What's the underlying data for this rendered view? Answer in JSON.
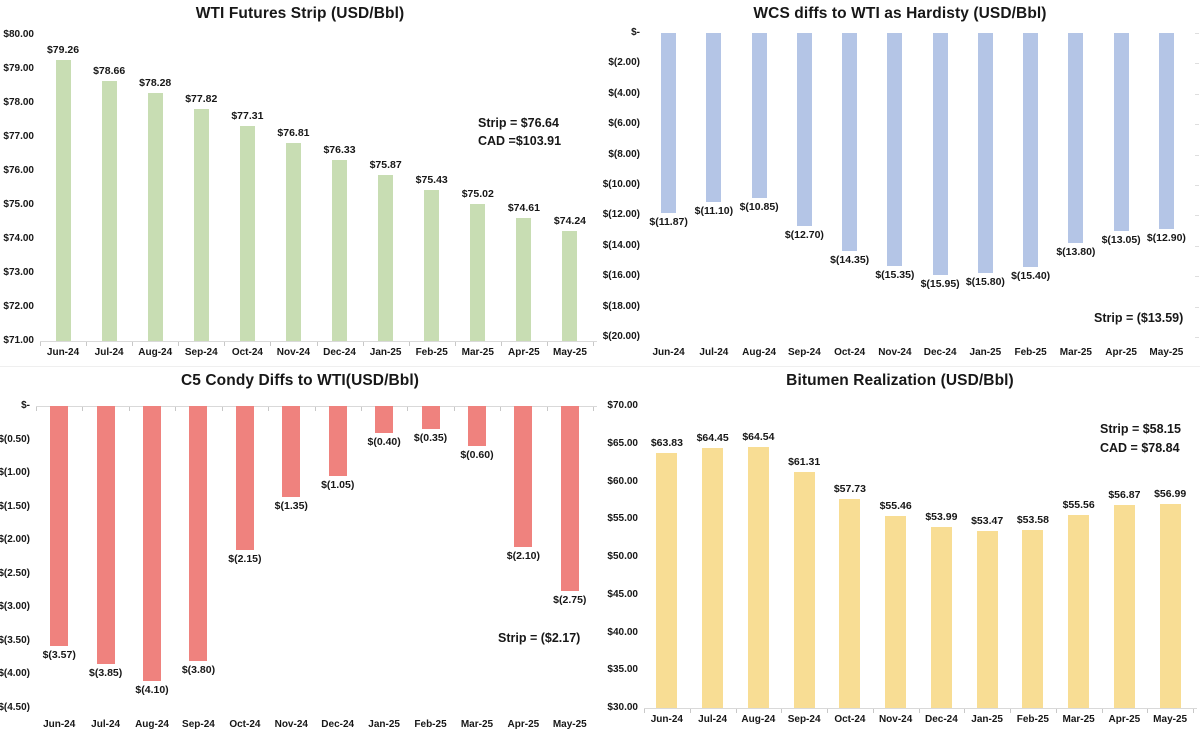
{
  "page": {
    "background": "#ffffff"
  },
  "chart_data": [
    {
      "type": "bar",
      "title": "WTI Futures Strip (USD/Bbl)",
      "categories": [
        "Jun-24",
        "Jul-24",
        "Aug-24",
        "Sep-24",
        "Oct-24",
        "Nov-24",
        "Dec-24",
        "Jan-25",
        "Feb-25",
        "Mar-25",
        "Apr-25",
        "May-25"
      ],
      "values": [
        79.26,
        78.66,
        78.28,
        77.82,
        77.31,
        76.81,
        76.33,
        75.87,
        75.43,
        75.02,
        74.61,
        74.24
      ],
      "bar_labels": [
        "$79.26",
        "$78.66",
        "$78.28",
        "$77.82",
        "$77.31",
        "$76.81",
        "$76.33",
        "$75.87",
        "$75.43",
        "$75.02",
        "$74.61",
        "$74.24"
      ],
      "ytick_labels": [
        "$80.00",
        "$79.00",
        "$78.00",
        "$77.00",
        "$76.00",
        "$75.00",
        "$74.00",
        "$73.00",
        "$72.00",
        "$71.00"
      ],
      "ytick_values": [
        80,
        79,
        78,
        77,
        76,
        75,
        74,
        73,
        72,
        71
      ],
      "yrange": [
        71,
        80
      ],
      "baseline": 71,
      "bar_color": "#c8ddb3",
      "label_position": "above",
      "grid": false,
      "annotation": [
        "Strip = $76.64",
        "CAD =$103.91"
      ],
      "annotation_position": "right-middle"
    },
    {
      "type": "bar",
      "title": "WCS diffs to WTI as Hardisty (USD/Bbl)",
      "categories": [
        "Jun-24",
        "Jul-24",
        "Aug-24",
        "Sep-24",
        "Oct-24",
        "Nov-24",
        "Dec-24",
        "Jan-25",
        "Feb-25",
        "Mar-25",
        "Apr-25",
        "May-25"
      ],
      "values": [
        -11.87,
        -11.1,
        -10.85,
        -12.7,
        -14.35,
        -15.35,
        -15.95,
        -15.8,
        -15.4,
        -13.8,
        -13.05,
        -12.9
      ],
      "bar_labels": [
        "$(11.87)",
        "$(11.10)",
        "$(10.85)",
        "$(12.70)",
        "$(14.35)",
        "$(15.35)",
        "$(15.95)",
        "$(15.80)",
        "$(15.40)",
        "$(13.80)",
        "$(13.05)",
        "$(12.90)"
      ],
      "ytick_labels": [
        "$-",
        "$(2.00)",
        "$(4.00)",
        "$(6.00)",
        "$(8.00)",
        "$(10.00)",
        "$(12.00)",
        "$(14.00)",
        "$(16.00)",
        "$(18.00)",
        "$(20.00)"
      ],
      "ytick_values": [
        0,
        -2,
        -4,
        -6,
        -8,
        -10,
        -12,
        -14,
        -16,
        -18,
        -20
      ],
      "yrange": [
        -20,
        0
      ],
      "baseline": 0,
      "bar_color": "#b4c5e6",
      "label_position": "below",
      "grid": false,
      "annotation": [
        "Strip = ($13.59)"
      ],
      "annotation_position": "right-bottom"
    },
    {
      "type": "bar",
      "title": "C5 Condy Diffs to WTI(USD/Bbl)",
      "categories": [
        "Jun-24",
        "Jul-24",
        "Aug-24",
        "Sep-24",
        "Oct-24",
        "Nov-24",
        "Dec-24",
        "Jan-25",
        "Feb-25",
        "Mar-25",
        "Apr-25",
        "May-25"
      ],
      "values": [
        -3.57,
        -3.85,
        -4.1,
        -3.8,
        -2.15,
        -1.35,
        -1.05,
        -0.4,
        -0.35,
        -0.6,
        -2.1,
        -2.75
      ],
      "bar_labels": [
        "$(3.57)",
        "$(3.85)",
        "$(4.10)",
        "$(3.80)",
        "$(2.15)",
        "$(1.35)",
        "$(1.05)",
        "$(0.40)",
        "$(0.35)",
        "$(0.60)",
        "$(2.10)",
        "$(2.75)"
      ],
      "ytick_labels": [
        "$-",
        "$(0.50)",
        "$(1.00)",
        "$(1.50)",
        "$(2.00)",
        "$(2.50)",
        "$(3.00)",
        "$(3.50)",
        "$(4.00)",
        "$(4.50)"
      ],
      "ytick_values": [
        0,
        -0.5,
        -1,
        -1.5,
        -2,
        -2.5,
        -3,
        -3.5,
        -4,
        -4.5
      ],
      "yrange": [
        -4.5,
        0
      ],
      "baseline": 0,
      "bar_color": "#ef827e",
      "label_position": "below",
      "grid": false,
      "annotation": [
        "Strip = ($2.17)"
      ],
      "annotation_position": "right-lower"
    },
    {
      "type": "bar",
      "title": "Bitumen Realization (USD/Bbl)",
      "categories": [
        "Jun-24",
        "Jul-24",
        "Aug-24",
        "Sep-24",
        "Oct-24",
        "Nov-24",
        "Dec-24",
        "Jan-25",
        "Feb-25",
        "Mar-25",
        "Apr-25",
        "May-25"
      ],
      "values": [
        63.83,
        64.45,
        64.54,
        61.31,
        57.73,
        55.46,
        53.99,
        53.47,
        53.58,
        55.56,
        56.87,
        56.99
      ],
      "bar_labels": [
        "$63.83",
        "$64.45",
        "$64.54",
        "$61.31",
        "$57.73",
        "$55.46",
        "$53.99",
        "$53.47",
        "$53.58",
        "$55.56",
        "$56.87",
        "$56.99"
      ],
      "ytick_labels": [
        "$70.00",
        "$65.00",
        "$60.00",
        "$55.00",
        "$50.00",
        "$45.00",
        "$40.00",
        "$35.00",
        "$30.00"
      ],
      "ytick_values": [
        70,
        65,
        60,
        55,
        50,
        45,
        40,
        35,
        30
      ],
      "yrange": [
        30,
        70
      ],
      "baseline": 30,
      "bar_color": "#f8dd94",
      "label_position": "above",
      "grid": false,
      "annotation": [
        "Strip = $58.15",
        "CAD = $78.84"
      ],
      "annotation_position": "right-top"
    }
  ]
}
